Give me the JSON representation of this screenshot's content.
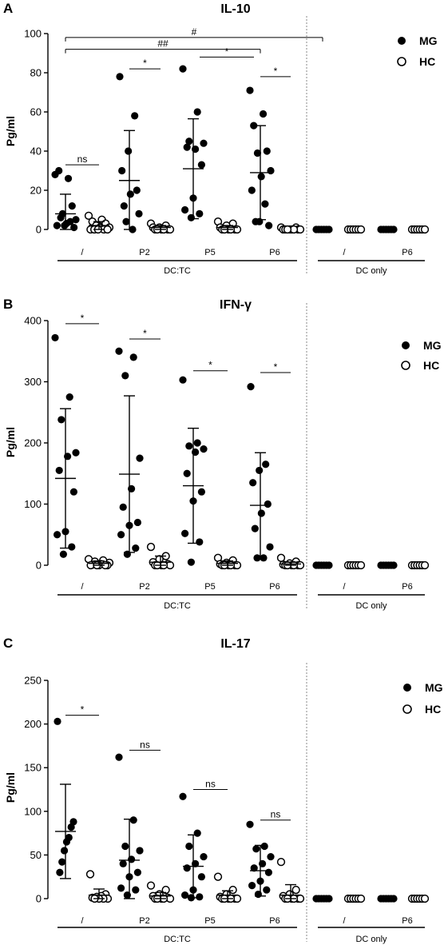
{
  "legend": {
    "items": [
      {
        "label": "MG",
        "marker": "filled"
      },
      {
        "label": "HC",
        "marker": "open"
      }
    ]
  },
  "groups": {
    "dctc_label": "DC:TC",
    "dconly_label": "DC only",
    "dctc_items": [
      "/",
      "P2",
      "P5",
      "P6"
    ],
    "dconly_items": [
      "/",
      "P6"
    ]
  },
  "colors": {
    "marker": "#000000",
    "axis": "#000000",
    "divider": "#888888"
  },
  "chart_data": [
    {
      "type": "scatter",
      "panel": "A",
      "title": "IL-10",
      "ylabel": "Pg/ml",
      "ylim": [
        0,
        100
      ],
      "yticks": [
        0,
        20,
        40,
        60,
        80,
        100
      ],
      "categories": [
        "/",
        "P2",
        "P5",
        "P6",
        "/",
        "P6"
      ],
      "series": [
        {
          "name": "MG",
          "points": [
            [
              28,
              26,
              30,
              12,
              8,
              5,
              3,
              2,
              4,
              6,
              1,
              2
            ],
            [
              78,
              58,
              40,
              30,
              20,
              18,
              12,
              8,
              0,
              4
            ],
            [
              82,
              60,
              45,
              44,
              41,
              42,
              33,
              16,
              10,
              8,
              6
            ],
            [
              71,
              59,
              53,
              40,
              39,
              30,
              27,
              20,
              13,
              4,
              2,
              4
            ],
            [
              0,
              0,
              0,
              0,
              0,
              0
            ],
            [
              0,
              0,
              0,
              0,
              0,
              0
            ]
          ],
          "mean": [
            8,
            25,
            31,
            29,
            0,
            0
          ],
          "sd": [
            10,
            25.5,
            25.5,
            24,
            0,
            0
          ]
        },
        {
          "name": "HC",
          "points": [
            [
              7,
              5,
              4,
              3,
              2,
              1,
              1,
              0,
              0,
              0,
              0,
              0
            ],
            [
              3,
              2,
              1,
              1,
              0,
              0,
              0,
              0,
              0,
              0
            ],
            [
              4,
              3,
              2,
              1,
              0,
              0,
              0,
              0,
              0,
              0
            ],
            [
              1,
              1,
              0,
              0,
              0,
              0,
              0,
              0,
              0,
              0
            ],
            [
              0,
              0,
              0,
              0,
              0,
              0
            ],
            [
              0,
              0,
              0,
              0,
              0,
              0
            ]
          ],
          "mean": [
            2,
            1,
            1,
            0,
            0,
            0
          ],
          "sd": [
            2,
            1,
            1,
            0,
            0,
            0
          ]
        }
      ],
      "significance": [
        {
          "label": "ns",
          "pair": [
            0,
            0
          ],
          "y": 33,
          "kind": "pair"
        },
        {
          "label": "*",
          "pair": [
            1,
            1
          ],
          "y": 82,
          "kind": "pair"
        },
        {
          "label": "*",
          "pair": [
            2,
            3
          ],
          "y": 88,
          "kind": "mid"
        },
        {
          "label": "*",
          "pair": [
            3,
            3
          ],
          "y": 78,
          "kind": "pair"
        },
        {
          "label": "##",
          "pair": [
            0,
            3
          ],
          "y": 92,
          "kind": "group"
        },
        {
          "label": "#",
          "pair": [
            0,
            4
          ],
          "y": 98,
          "kind": "group"
        }
      ]
    },
    {
      "type": "scatter",
      "panel": "B",
      "title": "IFN-γ",
      "ylabel": "Pg/ml",
      "ylim": [
        0,
        400
      ],
      "yticks": [
        0,
        100,
        200,
        300,
        400
      ],
      "categories": [
        "/",
        "P2",
        "P5",
        "P6",
        "/",
        "P6"
      ],
      "series": [
        {
          "name": "MG",
          "points": [
            [
              372,
              275,
              238,
              184,
              178,
              155,
              120,
              55,
              50,
              30,
              18
            ],
            [
              350,
              340,
              310,
              175,
              125,
              95,
              70,
              65,
              50,
              28,
              18
            ],
            [
              303,
              200,
              195,
              190,
              185,
              150,
              120,
              105,
              52,
              38,
              5
            ],
            [
              292,
              165,
              155,
              135,
              100,
              85,
              60,
              30,
              12,
              12
            ],
            [
              0,
              0,
              0,
              0,
              0,
              0
            ],
            [
              0,
              0,
              0,
              0,
              0,
              0
            ]
          ],
          "mean": [
            142,
            149,
            130,
            98,
            0,
            0
          ],
          "sd": [
            114,
            128,
            94,
            86,
            0,
            0
          ]
        },
        {
          "name": "HC",
          "points": [
            [
              10,
              8,
              6,
              4,
              2,
              1,
              0,
              0,
              0,
              0,
              0
            ],
            [
              30,
              15,
              10,
              5,
              2,
              0,
              0,
              0,
              0,
              0
            ],
            [
              12,
              8,
              4,
              2,
              0,
              0,
              0,
              0,
              0,
              0
            ],
            [
              12,
              6,
              3,
              1,
              0,
              0,
              0,
              0,
              0,
              0
            ],
            [
              0,
              0,
              0,
              0,
              0,
              0
            ],
            [
              0,
              0,
              0,
              0,
              0,
              0
            ]
          ],
          "mean": [
            3,
            5,
            3,
            2,
            0,
            0
          ],
          "sd": [
            4,
            10,
            4,
            3,
            0,
            0
          ]
        }
      ],
      "significance": [
        {
          "label": "*",
          "pair": [
            0,
            0
          ],
          "y": 395,
          "kind": "pair"
        },
        {
          "label": "*",
          "pair": [
            1,
            1
          ],
          "y": 370,
          "kind": "pair"
        },
        {
          "label": "*",
          "pair": [
            2,
            2
          ],
          "y": 318,
          "kind": "pair"
        },
        {
          "label": "*",
          "pair": [
            3,
            3
          ],
          "y": 315,
          "kind": "pair"
        }
      ]
    },
    {
      "type": "scatter",
      "panel": "C",
      "title": "IL-17",
      "ylabel": "Pg/ml",
      "ylim": [
        0,
        250
      ],
      "yticks": [
        0,
        50,
        100,
        150,
        200,
        250
      ],
      "categories": [
        "/",
        "P2",
        "P5",
        "P6",
        "/",
        "P6"
      ],
      "series": [
        {
          "name": "MG",
          "points": [
            [
              203,
              88,
              82,
              70,
              65,
              55,
              42,
              30
            ],
            [
              162,
              90,
              60,
              55,
              45,
              40,
              30,
              25,
              12,
              10,
              4
            ],
            [
              117,
              75,
              60,
              48,
              40,
              35,
              25,
              10,
              4,
              2,
              1
            ],
            [
              85,
              60,
              57,
              48,
              40,
              35,
              30,
              20,
              15,
              10,
              5
            ],
            [
              0,
              0,
              0,
              0,
              0,
              0
            ],
            [
              0,
              0,
              0,
              0,
              0,
              0
            ]
          ],
          "mean": [
            77,
            44,
            37,
            32,
            0,
            0
          ],
          "sd": [
            54,
            47,
            36,
            29,
            0,
            0
          ]
        },
        {
          "name": "HC",
          "points": [
            [
              28,
              5,
              3,
              2,
              1,
              0,
              0,
              0,
              0
            ],
            [
              15,
              10,
              5,
              3,
              1,
              0,
              0,
              0,
              0,
              0
            ],
            [
              25,
              10,
              5,
              2,
              0,
              0,
              0,
              0,
              0,
              0
            ],
            [
              42,
              10,
              5,
              3,
              0,
              0,
              0,
              0,
              0,
              0
            ],
            [
              0,
              0,
              0,
              0,
              0,
              0
            ],
            [
              0,
              0,
              0,
              0,
              0,
              0
            ]
          ],
          "mean": [
            4,
            3,
            4,
            4,
            0,
            0
          ],
          "sd": [
            7,
            4,
            5,
            12,
            0,
            0
          ]
        }
      ],
      "significance": [
        {
          "label": "*",
          "pair": [
            0,
            0
          ],
          "y": 210,
          "kind": "pair"
        },
        {
          "label": "ns",
          "pair": [
            1,
            1
          ],
          "y": 170,
          "kind": "pair"
        },
        {
          "label": "ns",
          "pair": [
            2,
            2
          ],
          "y": 125,
          "kind": "pair"
        },
        {
          "label": "ns",
          "pair": [
            3,
            3
          ],
          "y": 90,
          "kind": "pair"
        }
      ]
    }
  ]
}
